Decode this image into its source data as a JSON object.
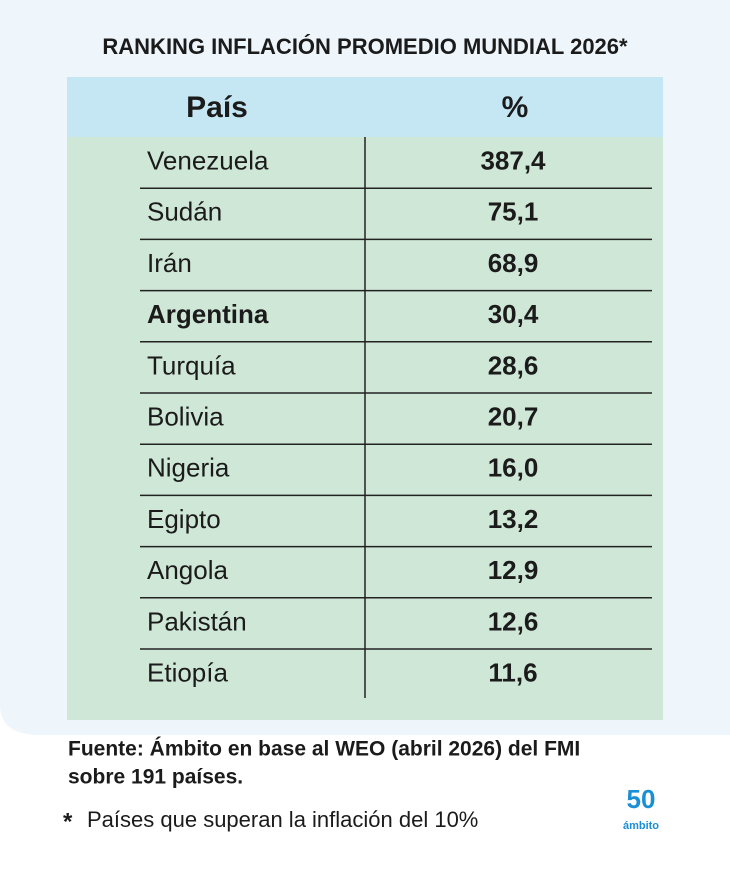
{
  "header": {
    "title": "RANKING INFLACIÓN PROMEDIO MUNDIAL 2026*"
  },
  "table": {
    "columns": [
      "País",
      "%"
    ],
    "rows": [
      [
        "Venezuela",
        "387,4"
      ],
      [
        "Sudán",
        "75,1"
      ],
      [
        "Irán",
        "68,9"
      ],
      [
        "Argentina",
        "30,4"
      ],
      [
        "Turquía",
        "28,6"
      ],
      [
        "Bolivia",
        "20,7"
      ],
      [
        "Nigeria",
        "16,0"
      ],
      [
        "Egipto",
        "13,2"
      ],
      [
        "Angola",
        "12,9"
      ],
      [
        "Pakistán",
        "12,6"
      ],
      [
        "Etiopía",
        "11,6"
      ]
    ]
  },
  "footer": {
    "source": [
      "Fuente: Ámbito en base al WEO (abril 2026) del FMI",
      "sobre 191 países."
    ],
    "note_marker": "*",
    "note": "Países que superan la inflación del 10%"
  },
  "logo": {
    "number": "50",
    "brand": "ámbito"
  }
}
